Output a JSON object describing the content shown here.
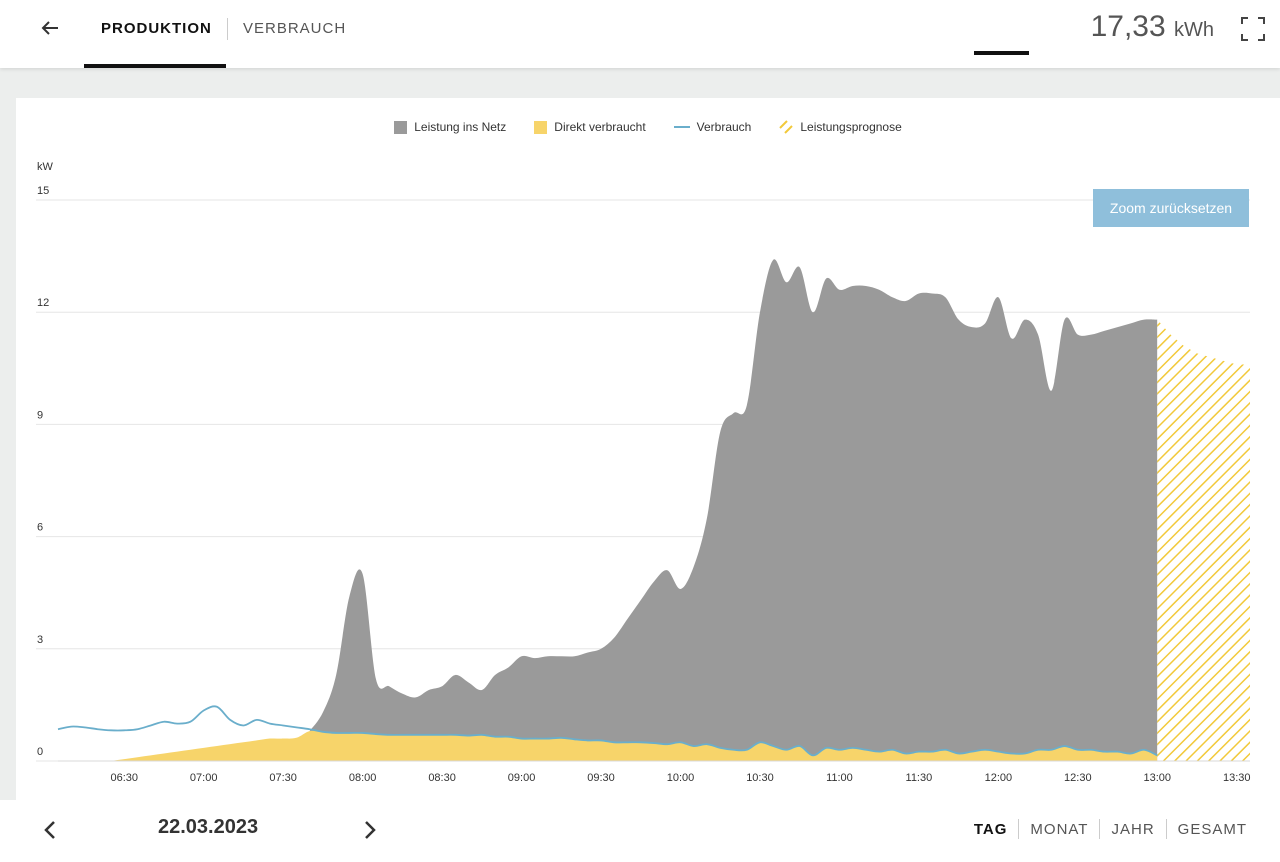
{
  "header": {
    "tabs": [
      {
        "label": "PRODUKTION"
      },
      {
        "label": "VERBRAUCH"
      }
    ],
    "total_value": "17,33",
    "total_unit": "kWh",
    "back_icon": "arrow-left-icon",
    "fullscreen_icon": "fullscreen-icon"
  },
  "zoom_button": {
    "label": "Zoom zurücksetzen"
  },
  "footer": {
    "date": "22.03.2023",
    "periods": [
      {
        "label": "TAG"
      },
      {
        "label": "MONAT"
      },
      {
        "label": "JAHR"
      },
      {
        "label": "GESAMT"
      }
    ],
    "selected_period": "TAG"
  },
  "colors": {
    "grid_feed": "#9a9a9a",
    "direct_use": "#f7d46a",
    "consumption": "#6aaecb",
    "forecast": "#f2c93a",
    "accent_button": "#8fbfdb"
  },
  "chart_data": {
    "type": "area",
    "ylabel": "kW",
    "ylim": [
      0,
      15
    ],
    "yticks": [
      0,
      3,
      6,
      9,
      12,
      15
    ],
    "xlim": [
      "06:05",
      "13:35"
    ],
    "xticks": [
      "06:30",
      "07:00",
      "07:30",
      "08:00",
      "08:30",
      "09:00",
      "09:30",
      "10:00",
      "10:30",
      "11:00",
      "11:30",
      "12:00",
      "12:30",
      "13:00",
      "13:30"
    ],
    "legend_position": "top-center",
    "grid": true,
    "series": [
      {
        "name": "Leistung ins Netz",
        "type": "area",
        "color": "#9a9a9a",
        "points": [
          [
            "07:40",
            0.8
          ],
          [
            "07:45",
            1.3
          ],
          [
            "07:50",
            2.3
          ],
          [
            "07:55",
            4.4
          ],
          [
            "08:00",
            5.0
          ],
          [
            "08:05",
            2.2
          ],
          [
            "08:10",
            2.0
          ],
          [
            "08:15",
            1.8
          ],
          [
            "08:20",
            1.7
          ],
          [
            "08:25",
            1.9
          ],
          [
            "08:30",
            2.0
          ],
          [
            "08:35",
            2.3
          ],
          [
            "08:40",
            2.1
          ],
          [
            "08:45",
            1.9
          ],
          [
            "08:50",
            2.3
          ],
          [
            "08:55",
            2.5
          ],
          [
            "09:00",
            2.8
          ],
          [
            "09:05",
            2.75
          ],
          [
            "09:10",
            2.8
          ],
          [
            "09:15",
            2.8
          ],
          [
            "09:20",
            2.8
          ],
          [
            "09:25",
            2.9
          ],
          [
            "09:30",
            3.0
          ],
          [
            "09:35",
            3.3
          ],
          [
            "09:40",
            3.8
          ],
          [
            "09:45",
            4.3
          ],
          [
            "09:50",
            4.8
          ],
          [
            "09:55",
            5.1
          ],
          [
            "10:00",
            4.6
          ],
          [
            "10:05",
            5.2
          ],
          [
            "10:10",
            6.5
          ],
          [
            "10:15",
            8.8
          ],
          [
            "10:20",
            9.3
          ],
          [
            "10:25",
            9.5
          ],
          [
            "10:30",
            12.0
          ],
          [
            "10:35",
            13.4
          ],
          [
            "10:40",
            12.8
          ],
          [
            "10:45",
            13.2
          ],
          [
            "10:50",
            12.0
          ],
          [
            "10:55",
            12.9
          ],
          [
            "11:00",
            12.6
          ],
          [
            "11:05",
            12.7
          ],
          [
            "11:10",
            12.7
          ],
          [
            "11:15",
            12.6
          ],
          [
            "11:20",
            12.4
          ],
          [
            "11:25",
            12.3
          ],
          [
            "11:30",
            12.5
          ],
          [
            "11:35",
            12.5
          ],
          [
            "11:40",
            12.4
          ],
          [
            "11:45",
            11.8
          ],
          [
            "11:50",
            11.6
          ],
          [
            "11:55",
            11.7
          ],
          [
            "12:00",
            12.4
          ],
          [
            "12:05",
            11.3
          ],
          [
            "12:10",
            11.8
          ],
          [
            "12:15",
            11.4
          ],
          [
            "12:20",
            9.9
          ],
          [
            "12:25",
            11.8
          ],
          [
            "12:30",
            11.4
          ],
          [
            "12:35",
            11.4
          ],
          [
            "12:40",
            11.5
          ],
          [
            "12:45",
            11.6
          ],
          [
            "12:50",
            11.7
          ],
          [
            "12:55",
            11.8
          ],
          [
            "13:00",
            11.8
          ]
        ]
      },
      {
        "name": "Direkt verbraucht",
        "type": "area",
        "color": "#f7d46a",
        "points": [
          [
            "06:25",
            0.0
          ],
          [
            "06:30",
            0.05
          ],
          [
            "06:35",
            0.1
          ],
          [
            "06:40",
            0.15
          ],
          [
            "06:45",
            0.2
          ],
          [
            "06:50",
            0.25
          ],
          [
            "06:55",
            0.3
          ],
          [
            "07:00",
            0.35
          ],
          [
            "07:05",
            0.4
          ],
          [
            "07:10",
            0.45
          ],
          [
            "07:15",
            0.5
          ],
          [
            "07:20",
            0.55
          ],
          [
            "07:25",
            0.6
          ],
          [
            "07:30",
            0.6
          ],
          [
            "07:35",
            0.62
          ],
          [
            "07:40",
            0.8
          ],
          [
            "07:45",
            0.78
          ],
          [
            "07:50",
            0.75
          ],
          [
            "07:55",
            0.75
          ],
          [
            "08:00",
            0.75
          ],
          [
            "08:05",
            0.72
          ],
          [
            "08:10",
            0.7
          ],
          [
            "08:15",
            0.7
          ],
          [
            "08:20",
            0.7
          ],
          [
            "08:25",
            0.7
          ],
          [
            "08:30",
            0.7
          ],
          [
            "08:35",
            0.7
          ],
          [
            "08:40",
            0.68
          ],
          [
            "08:45",
            0.7
          ],
          [
            "08:50",
            0.65
          ],
          [
            "08:55",
            0.65
          ],
          [
            "09:00",
            0.6
          ],
          [
            "09:05",
            0.6
          ],
          [
            "09:10",
            0.6
          ],
          [
            "09:15",
            0.62
          ],
          [
            "09:20",
            0.58
          ],
          [
            "09:25",
            0.55
          ],
          [
            "09:30",
            0.55
          ],
          [
            "09:35",
            0.5
          ],
          [
            "09:40",
            0.5
          ],
          [
            "09:45",
            0.5
          ],
          [
            "09:50",
            0.48
          ],
          [
            "09:55",
            0.45
          ],
          [
            "10:00",
            0.5
          ],
          [
            "10:05",
            0.4
          ],
          [
            "10:10",
            0.45
          ],
          [
            "10:15",
            0.35
          ],
          [
            "10:20",
            0.3
          ],
          [
            "10:25",
            0.3
          ],
          [
            "10:30",
            0.5
          ],
          [
            "10:35",
            0.4
          ],
          [
            "10:40",
            0.3
          ],
          [
            "10:45",
            0.4
          ],
          [
            "10:50",
            0.15
          ],
          [
            "10:55",
            0.35
          ],
          [
            "11:00",
            0.3
          ],
          [
            "11:05",
            0.35
          ],
          [
            "11:10",
            0.3
          ],
          [
            "11:15",
            0.25
          ],
          [
            "11:20",
            0.3
          ],
          [
            "11:25",
            0.2
          ],
          [
            "11:30",
            0.25
          ],
          [
            "11:35",
            0.25
          ],
          [
            "11:40",
            0.3
          ],
          [
            "11:45",
            0.2
          ],
          [
            "11:50",
            0.25
          ],
          [
            "11:55",
            0.3
          ],
          [
            "12:00",
            0.25
          ],
          [
            "12:05",
            0.2
          ],
          [
            "12:10",
            0.2
          ],
          [
            "12:15",
            0.3
          ],
          [
            "12:20",
            0.3
          ],
          [
            "12:25",
            0.4
          ],
          [
            "12:30",
            0.3
          ],
          [
            "12:35",
            0.3
          ],
          [
            "12:40",
            0.25
          ],
          [
            "12:45",
            0.25
          ],
          [
            "12:50",
            0.2
          ],
          [
            "12:55",
            0.3
          ],
          [
            "13:00",
            0.15
          ]
        ]
      },
      {
        "name": "Verbrauch",
        "type": "line",
        "color": "#6aaecb",
        "points": [
          [
            "06:05",
            0.85
          ],
          [
            "06:10",
            0.92
          ],
          [
            "06:15",
            0.9
          ],
          [
            "06:20",
            0.85
          ],
          [
            "06:25",
            0.82
          ],
          [
            "06:30",
            0.82
          ],
          [
            "06:35",
            0.85
          ],
          [
            "06:40",
            0.95
          ],
          [
            "06:45",
            1.05
          ],
          [
            "06:50",
            1.0
          ],
          [
            "06:55",
            1.05
          ],
          [
            "07:00",
            1.35
          ],
          [
            "07:05",
            1.45
          ],
          [
            "07:10",
            1.1
          ],
          [
            "07:15",
            0.95
          ],
          [
            "07:20",
            1.1
          ],
          [
            "07:25",
            1.0
          ],
          [
            "07:30",
            0.95
          ],
          [
            "07:35",
            0.9
          ],
          [
            "07:40",
            0.85
          ],
          [
            "07:45",
            0.78
          ],
          [
            "07:50",
            0.75
          ],
          [
            "07:55",
            0.75
          ],
          [
            "08:00",
            0.75
          ],
          [
            "08:05",
            0.72
          ],
          [
            "08:10",
            0.7
          ],
          [
            "08:15",
            0.7
          ],
          [
            "08:20",
            0.7
          ],
          [
            "08:25",
            0.7
          ],
          [
            "08:30",
            0.7
          ],
          [
            "08:35",
            0.7
          ],
          [
            "08:40",
            0.68
          ],
          [
            "08:45",
            0.7
          ],
          [
            "08:50",
            0.65
          ],
          [
            "08:55",
            0.65
          ],
          [
            "09:00",
            0.6
          ],
          [
            "09:05",
            0.6
          ],
          [
            "09:10",
            0.6
          ],
          [
            "09:15",
            0.62
          ],
          [
            "09:20",
            0.58
          ],
          [
            "09:25",
            0.55
          ],
          [
            "09:30",
            0.55
          ],
          [
            "09:35",
            0.5
          ],
          [
            "09:40",
            0.5
          ],
          [
            "09:45",
            0.5
          ],
          [
            "09:50",
            0.48
          ],
          [
            "09:55",
            0.45
          ],
          [
            "10:00",
            0.5
          ],
          [
            "10:05",
            0.4
          ],
          [
            "10:10",
            0.45
          ],
          [
            "10:15",
            0.35
          ],
          [
            "10:20",
            0.3
          ],
          [
            "10:25",
            0.3
          ],
          [
            "10:30",
            0.5
          ],
          [
            "10:35",
            0.4
          ],
          [
            "10:40",
            0.3
          ],
          [
            "10:45",
            0.4
          ],
          [
            "10:50",
            0.15
          ],
          [
            "10:55",
            0.35
          ],
          [
            "11:00",
            0.3
          ],
          [
            "11:05",
            0.35
          ],
          [
            "11:10",
            0.3
          ],
          [
            "11:15",
            0.25
          ],
          [
            "11:20",
            0.3
          ],
          [
            "11:25",
            0.2
          ],
          [
            "11:30",
            0.25
          ],
          [
            "11:35",
            0.25
          ],
          [
            "11:40",
            0.3
          ],
          [
            "11:45",
            0.2
          ],
          [
            "11:50",
            0.25
          ],
          [
            "11:55",
            0.3
          ],
          [
            "12:00",
            0.25
          ],
          [
            "12:05",
            0.2
          ],
          [
            "12:10",
            0.2
          ],
          [
            "12:15",
            0.3
          ],
          [
            "12:20",
            0.3
          ],
          [
            "12:25",
            0.4
          ],
          [
            "12:30",
            0.3
          ],
          [
            "12:35",
            0.3
          ],
          [
            "12:40",
            0.25
          ],
          [
            "12:45",
            0.25
          ],
          [
            "12:50",
            0.2
          ],
          [
            "12:55",
            0.3
          ],
          [
            "13:00",
            0.15
          ]
        ]
      },
      {
        "name": "Leistungsprognose",
        "type": "hatched-area",
        "color": "#f2c93a",
        "points": [
          [
            "13:00",
            11.8
          ],
          [
            "13:05",
            11.4
          ],
          [
            "13:10",
            11.1
          ],
          [
            "13:15",
            10.9
          ],
          [
            "13:20",
            10.8
          ],
          [
            "13:25",
            10.7
          ],
          [
            "13:30",
            10.6
          ],
          [
            "13:35",
            10.6
          ]
        ]
      }
    ]
  }
}
